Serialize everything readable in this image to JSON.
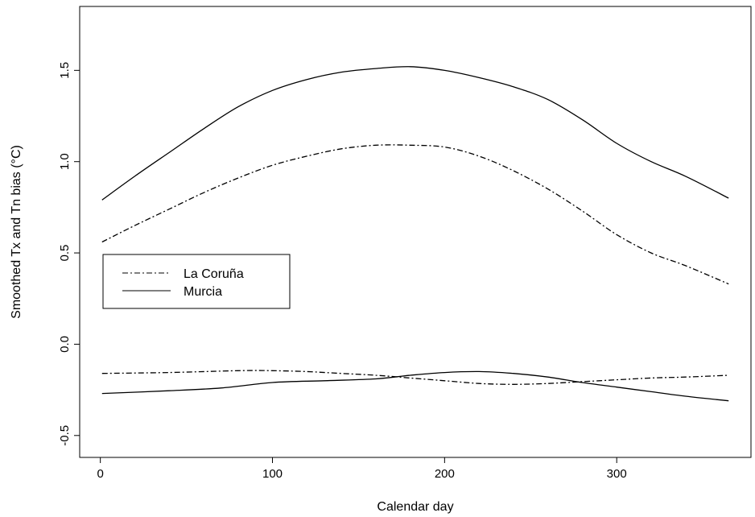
{
  "chart_data": {
    "type": "line",
    "title": "",
    "xlabel": "Calendar day",
    "ylabel": "Smoothed Tx and Tn bias (°C)",
    "xlim": [
      -12,
      378
    ],
    "ylim": [
      -0.62,
      1.85
    ],
    "xticks": [
      0,
      100,
      200,
      300
    ],
    "yticks": [
      -0.5,
      0.0,
      0.5,
      1.0,
      1.5
    ],
    "ytick_labels": [
      "-0.5",
      "0.0",
      "0.5",
      "1.0",
      "1.5"
    ],
    "grid": false,
    "legend": {
      "placement": "left-middle",
      "entries": [
        {
          "label": "La Coruña",
          "style": "dashdot"
        },
        {
          "label": "Murcia",
          "style": "solid"
        }
      ]
    },
    "series": [
      {
        "name": "La Coruña",
        "curve": "upper",
        "style": "dashdot",
        "x": [
          1,
          20,
          40,
          60,
          80,
          100,
          120,
          140,
          160,
          180,
          200,
          220,
          240,
          260,
          280,
          300,
          320,
          340,
          365
        ],
        "y": [
          0.56,
          0.65,
          0.74,
          0.83,
          0.91,
          0.98,
          1.03,
          1.07,
          1.09,
          1.09,
          1.08,
          1.03,
          0.95,
          0.85,
          0.73,
          0.6,
          0.5,
          0.43,
          0.33
        ]
      },
      {
        "name": "Murcia",
        "curve": "upper",
        "style": "solid",
        "x": [
          1,
          20,
          40,
          60,
          80,
          100,
          120,
          140,
          160,
          180,
          200,
          220,
          240,
          260,
          280,
          300,
          320,
          340,
          365
        ],
        "y": [
          0.79,
          0.92,
          1.05,
          1.18,
          1.3,
          1.39,
          1.45,
          1.49,
          1.51,
          1.52,
          1.5,
          1.46,
          1.41,
          1.34,
          1.23,
          1.1,
          1.0,
          0.92,
          0.8
        ]
      },
      {
        "name": "La Coruña",
        "curve": "lower",
        "style": "dashdot",
        "x": [
          1,
          40,
          80,
          100,
          120,
          140,
          160,
          180,
          200,
          220,
          240,
          260,
          280,
          300,
          320,
          340,
          365
        ],
        "y": [
          -0.16,
          -0.155,
          -0.145,
          -0.145,
          -0.15,
          -0.16,
          -0.17,
          -0.185,
          -0.2,
          -0.215,
          -0.22,
          -0.215,
          -0.205,
          -0.195,
          -0.185,
          -0.18,
          -0.17
        ]
      },
      {
        "name": "Murcia",
        "curve": "lower",
        "style": "solid",
        "x": [
          1,
          40,
          70,
          100,
          130,
          160,
          180,
          200,
          220,
          240,
          260,
          280,
          300,
          320,
          340,
          365
        ],
        "y": [
          -0.27,
          -0.255,
          -0.24,
          -0.21,
          -0.2,
          -0.19,
          -0.17,
          -0.155,
          -0.15,
          -0.16,
          -0.18,
          -0.21,
          -0.235,
          -0.26,
          -0.285,
          -0.31
        ]
      }
    ]
  }
}
